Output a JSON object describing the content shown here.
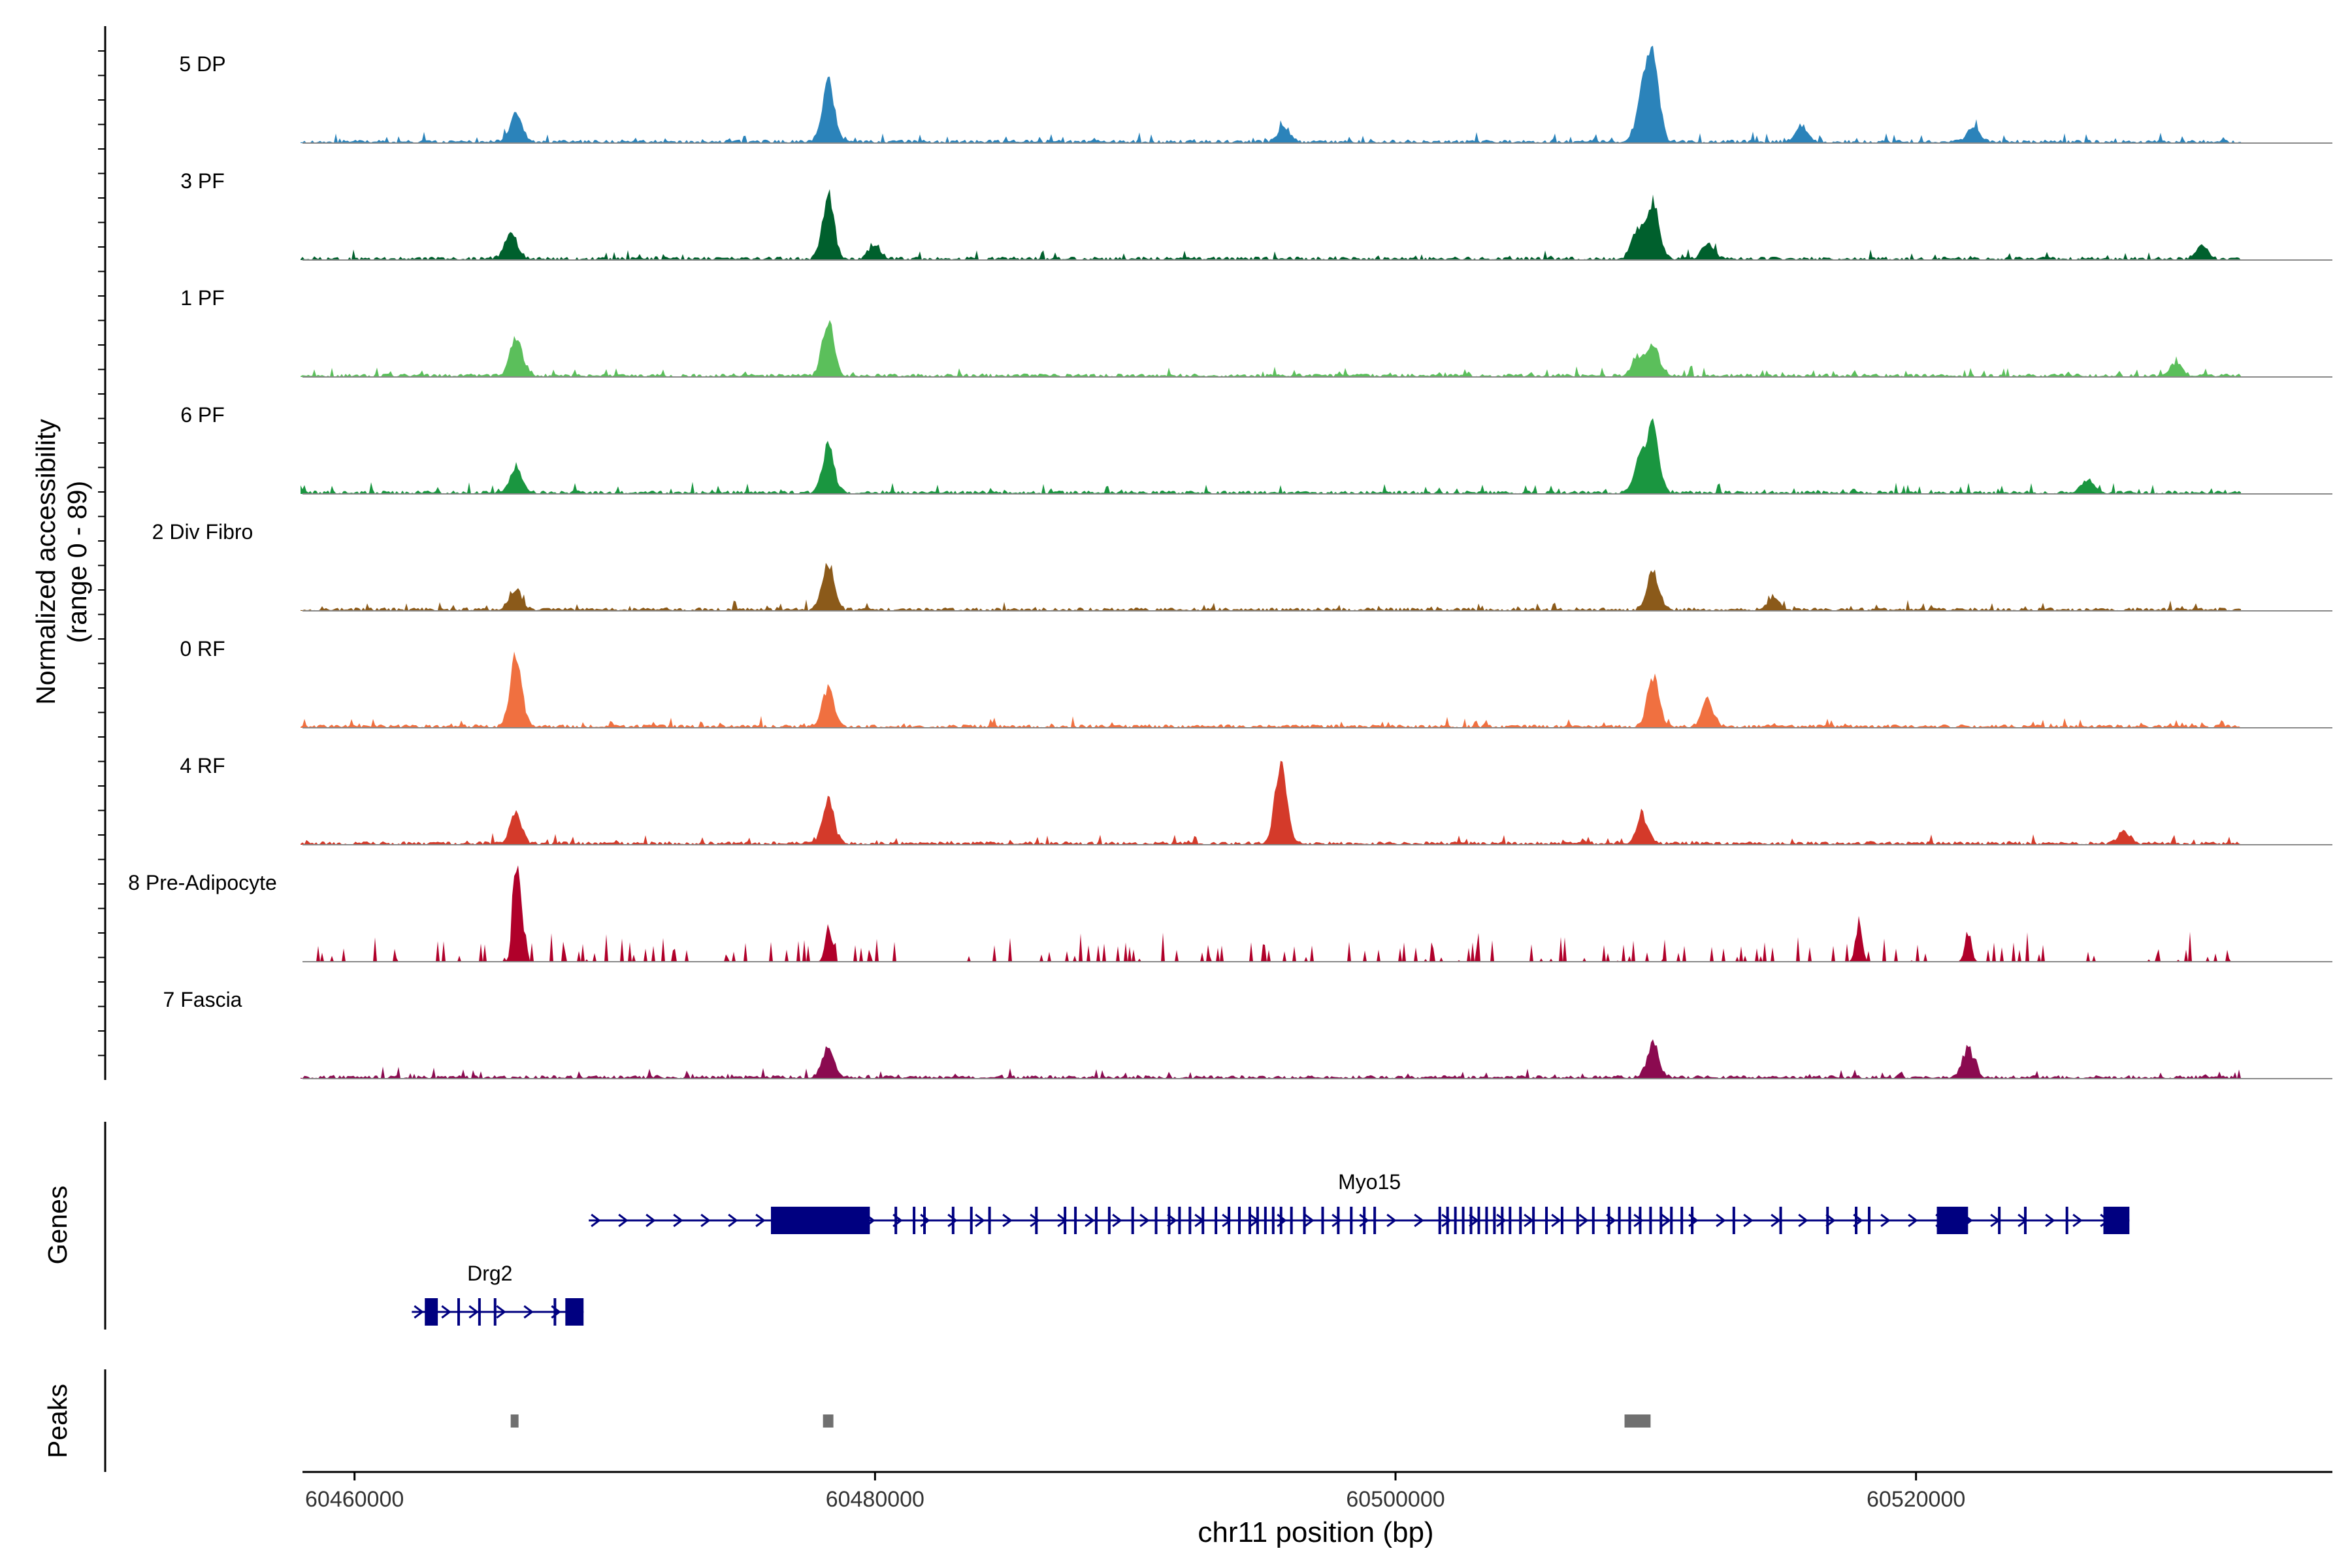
{
  "chart_data": {
    "type": "area",
    "title": "",
    "y_axis_label_line1": "Normalized accessibility",
    "y_axis_label_line2": "(range 0 - 89)",
    "y_range": [
      0,
      89
    ],
    "x_axis_label": "chr11 position (bp)",
    "x_range": [
      60458000,
      60536000
    ],
    "x_ticks": [
      {
        "value": 60460000,
        "label": "60460000"
      },
      {
        "value": 60480000,
        "label": "60480000"
      },
      {
        "value": 60500000,
        "label": "60500000"
      },
      {
        "value": 60520000,
        "label": "60520000"
      }
    ],
    "genes_label": "Genes",
    "peaks_label": "Peaks",
    "tracks": [
      {
        "name": "5 DP",
        "color": "#2b83ba",
        "style": "smooth",
        "seed": 11,
        "peaks": [
          [
            60466200,
            0.35
          ],
          [
            60478200,
            0.7
          ],
          [
            60495700,
            0.18
          ],
          [
            60509900,
            1.0
          ],
          [
            60509500,
            0.55
          ],
          [
            60515600,
            0.2
          ],
          [
            60522200,
            0.18
          ]
        ]
      },
      {
        "name": "3 PF",
        "color": "#00602d",
        "style": "smooth",
        "seed": 23,
        "peaks": [
          [
            60466000,
            0.3
          ],
          [
            60478200,
            0.75
          ],
          [
            60480000,
            0.15
          ],
          [
            60509900,
            0.65
          ],
          [
            60509300,
            0.35
          ],
          [
            60512000,
            0.18
          ],
          [
            60531000,
            0.15
          ]
        ]
      },
      {
        "name": "1 PF",
        "color": "#5bbf5b",
        "style": "smooth",
        "seed": 37,
        "peaks": [
          [
            60466200,
            0.45
          ],
          [
            60478200,
            0.65
          ],
          [
            60509900,
            0.35
          ],
          [
            60509300,
            0.22
          ],
          [
            60530000,
            0.15
          ]
        ]
      },
      {
        "name": "6 PF",
        "color": "#1a9640",
        "style": "smooth",
        "seed": 41,
        "peaks": [
          [
            60466200,
            0.3
          ],
          [
            60478200,
            0.55
          ],
          [
            60509900,
            0.75
          ],
          [
            60509400,
            0.4
          ],
          [
            60526600,
            0.15
          ]
        ]
      },
      {
        "name": "2 Div Fibro",
        "color": "#8b5a1a",
        "style": "smooth",
        "seed": 53,
        "peaks": [
          [
            60466200,
            0.25
          ],
          [
            60478200,
            0.55
          ],
          [
            60509900,
            0.45
          ],
          [
            60514500,
            0.15
          ]
        ]
      },
      {
        "name": "0 RF",
        "color": "#f07040",
        "style": "smooth",
        "seed": 61,
        "peaks": [
          [
            60466200,
            0.8
          ],
          [
            60478200,
            0.45
          ],
          [
            60509900,
            0.6
          ],
          [
            60512000,
            0.3
          ]
        ]
      },
      {
        "name": "4 RF",
        "color": "#d43a2a",
        "style": "smooth",
        "seed": 71,
        "peaks": [
          [
            60466200,
            0.35
          ],
          [
            60478200,
            0.5
          ],
          [
            60495600,
            1.0
          ],
          [
            60509500,
            0.3
          ],
          [
            60528000,
            0.15
          ]
        ]
      },
      {
        "name": "8 Pre-Adipocyte",
        "color": "#b0002a",
        "style": "spiky",
        "seed": 83,
        "peaks": [
          [
            60466200,
            1.0
          ],
          [
            60466400,
            0.5
          ],
          [
            60478200,
            0.4
          ],
          [
            60517800,
            0.45
          ],
          [
            60522000,
            0.35
          ]
        ]
      },
      {
        "name": "7 Fascia",
        "color": "#8b0a50",
        "style": "smooth",
        "seed": 97,
        "peaks": [
          [
            60478200,
            0.35
          ],
          [
            60509900,
            0.4
          ],
          [
            60522000,
            0.35
          ]
        ]
      }
    ],
    "genes": [
      {
        "name": "Myo15",
        "start": 60469000,
        "end": 60528200,
        "strand": "+",
        "row": 0,
        "exons": [
          [
            60476000,
            60479800
          ],
          [
            60520800,
            60522000
          ],
          [
            60527200,
            60528200
          ]
        ],
        "exon_starts": [
          60477000,
          60478000,
          60480800,
          60481500,
          60481900,
          60483000,
          60483700,
          60484400,
          60486200,
          60487300,
          60487700,
          60488500,
          60489000,
          60489900,
          60490800,
          60491300,
          60491700,
          60492100,
          60492600,
          60493100,
          60493600,
          60494000,
          60494400,
          60494700,
          60495000,
          60495300,
          60495600,
          60496000,
          60496500,
          60497200,
          60497800,
          60498300,
          60498800,
          60499200,
          60501700,
          60502000,
          60502300,
          60502600,
          60502900,
          60503200,
          60503500,
          60503800,
          60504100,
          60504400,
          60504800,
          60505300,
          60505800,
          60506400,
          60507000,
          60507600,
          60508200,
          60508600,
          60509000,
          60509400,
          60509800,
          60510200,
          60510600,
          60511000,
          60511400,
          60513000,
          60514800,
          60516600,
          60517700,
          60518200,
          60523200,
          60524200,
          60525800
        ]
      },
      {
        "name": "Drg2",
        "start": 60462200,
        "end": 60468800,
        "strand": "+",
        "row": 1,
        "exons": [
          [
            60462700,
            60463200
          ],
          [
            60468100,
            60468800
          ]
        ],
        "exon_starts": [
          60464000,
          60464800,
          60465400,
          60467700
        ]
      }
    ],
    "peaks_regions": [
      [
        60466000,
        60466300
      ],
      [
        60478000,
        60478400
      ],
      [
        60508800,
        60509800
      ]
    ]
  }
}
